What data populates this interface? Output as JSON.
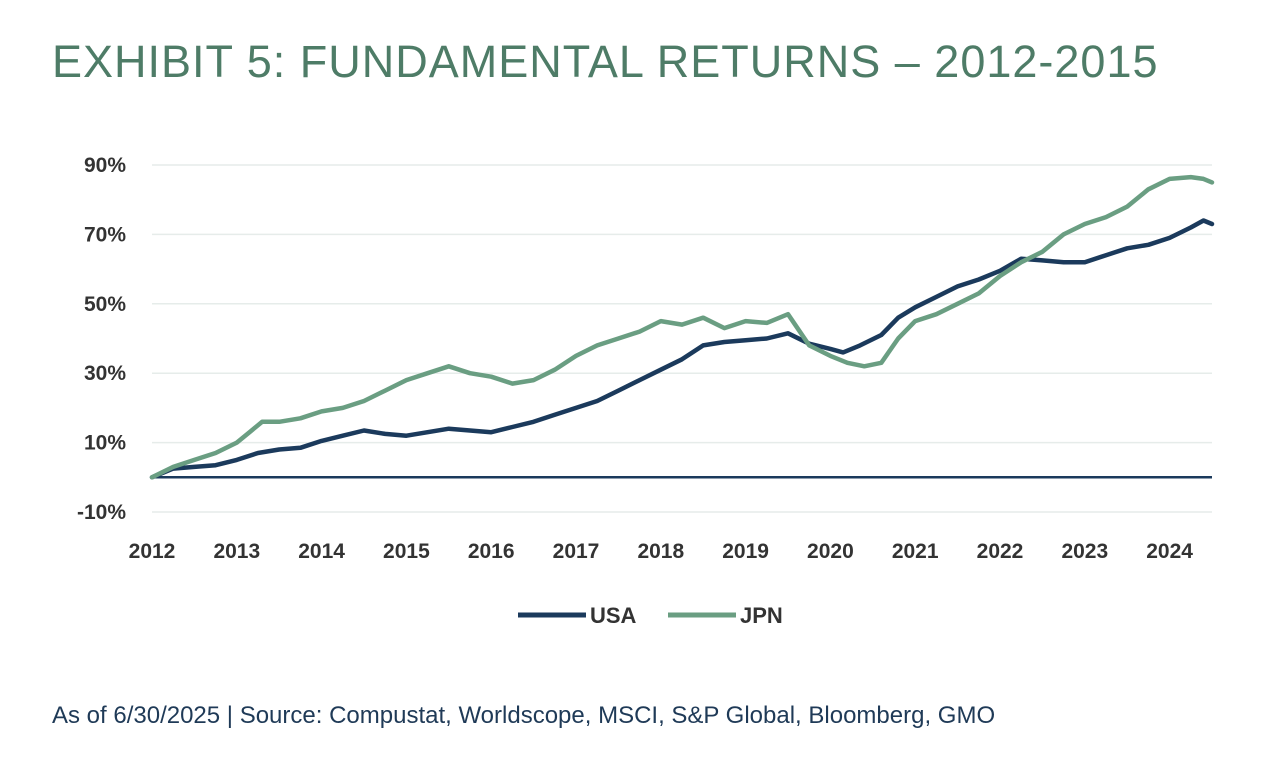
{
  "title": "EXHIBIT 5: FUNDAMENTAL RETURNS – 2012-2015",
  "footer": "As of 6/30/2025 | Source: Compustat, Worldscope, MSCI, S&P Global, Bloomberg, GMO",
  "colors": {
    "title": "#4e7c67",
    "usa": "#1b3a5c",
    "jpn": "#6a9e82",
    "footer": "#1f3a57"
  },
  "chart_data": {
    "type": "line",
    "title": "EXHIBIT 5: FUNDAMENTAL RETURNS – 2012-2015",
    "xlabel": "",
    "ylabel": "",
    "xlim": [
      2012,
      2024.5
    ],
    "ylim": [
      -10,
      90
    ],
    "y_ticks": [
      "90%",
      "70%",
      "50%",
      "30%",
      "10%",
      "-10%"
    ],
    "x_ticks": [
      "2012",
      "2013",
      "2014",
      "2015",
      "2016",
      "2017",
      "2018",
      "2019",
      "2020",
      "2021",
      "2022",
      "2023",
      "2024"
    ],
    "grid": true,
    "legend": "bottom-center",
    "series": [
      {
        "name": "USA",
        "color": "#1b3a5c",
        "points": [
          [
            2012,
            0
          ],
          [
            2012.25,
            2.5
          ],
          [
            2012.5,
            3
          ],
          [
            2012.75,
            3.5
          ],
          [
            2013,
            5
          ],
          [
            2013.25,
            7
          ],
          [
            2013.5,
            8
          ],
          [
            2013.75,
            8.5
          ],
          [
            2014,
            10.5
          ],
          [
            2014.25,
            12
          ],
          [
            2014.5,
            13.5
          ],
          [
            2014.75,
            12.5
          ],
          [
            2015,
            12
          ],
          [
            2015.25,
            13
          ],
          [
            2015.5,
            14
          ],
          [
            2015.75,
            13.5
          ],
          [
            2016,
            13
          ],
          [
            2016.25,
            14.5
          ],
          [
            2016.5,
            16
          ],
          [
            2016.75,
            18
          ],
          [
            2017,
            20
          ],
          [
            2017.25,
            22
          ],
          [
            2017.5,
            25
          ],
          [
            2017.75,
            28
          ],
          [
            2018,
            31
          ],
          [
            2018.25,
            34
          ],
          [
            2018.5,
            38
          ],
          [
            2018.75,
            39
          ],
          [
            2019,
            39.5
          ],
          [
            2019.25,
            40
          ],
          [
            2019.5,
            41.5
          ],
          [
            2019.75,
            38.5
          ],
          [
            2020,
            37
          ],
          [
            2020.15,
            36
          ],
          [
            2020.35,
            38
          ],
          [
            2020.6,
            41
          ],
          [
            2020.8,
            46
          ],
          [
            2021,
            49
          ],
          [
            2021.25,
            52
          ],
          [
            2021.5,
            55
          ],
          [
            2021.75,
            57
          ],
          [
            2022,
            59.5
          ],
          [
            2022.25,
            63
          ],
          [
            2022.5,
            62.5
          ],
          [
            2022.75,
            62
          ],
          [
            2023,
            62
          ],
          [
            2023.25,
            64
          ],
          [
            2023.5,
            66
          ],
          [
            2023.75,
            67
          ],
          [
            2024,
            69
          ],
          [
            2024.25,
            72
          ],
          [
            2024.4,
            74
          ],
          [
            2024.5,
            73
          ]
        ]
      },
      {
        "name": "JPN",
        "color": "#6a9e82",
        "points": [
          [
            2012,
            0
          ],
          [
            2012.25,
            3
          ],
          [
            2012.5,
            5
          ],
          [
            2012.75,
            7
          ],
          [
            2013,
            10
          ],
          [
            2013.15,
            13
          ],
          [
            2013.3,
            16
          ],
          [
            2013.5,
            16
          ],
          [
            2013.75,
            17
          ],
          [
            2014,
            19
          ],
          [
            2014.25,
            20
          ],
          [
            2014.5,
            22
          ],
          [
            2014.75,
            25
          ],
          [
            2015,
            28
          ],
          [
            2015.25,
            30
          ],
          [
            2015.5,
            32
          ],
          [
            2015.75,
            30
          ],
          [
            2016,
            29
          ],
          [
            2016.25,
            27
          ],
          [
            2016.5,
            28
          ],
          [
            2016.75,
            31
          ],
          [
            2017,
            35
          ],
          [
            2017.25,
            38
          ],
          [
            2017.5,
            40
          ],
          [
            2017.75,
            42
          ],
          [
            2018,
            45
          ],
          [
            2018.25,
            44
          ],
          [
            2018.5,
            46
          ],
          [
            2018.75,
            43
          ],
          [
            2019,
            45
          ],
          [
            2019.25,
            44.5
          ],
          [
            2019.5,
            47
          ],
          [
            2019.75,
            38
          ],
          [
            2020,
            35
          ],
          [
            2020.2,
            33
          ],
          [
            2020.4,
            32
          ],
          [
            2020.6,
            33
          ],
          [
            2020.8,
            40
          ],
          [
            2021,
            45
          ],
          [
            2021.25,
            47
          ],
          [
            2021.5,
            50
          ],
          [
            2021.75,
            53
          ],
          [
            2022,
            58
          ],
          [
            2022.25,
            62
          ],
          [
            2022.5,
            65
          ],
          [
            2022.75,
            70
          ],
          [
            2023,
            73
          ],
          [
            2023.25,
            75
          ],
          [
            2023.5,
            78
          ],
          [
            2023.75,
            83
          ],
          [
            2024,
            86
          ],
          [
            2024.25,
            86.5
          ],
          [
            2024.4,
            86
          ],
          [
            2024.5,
            85
          ]
        ]
      }
    ]
  }
}
